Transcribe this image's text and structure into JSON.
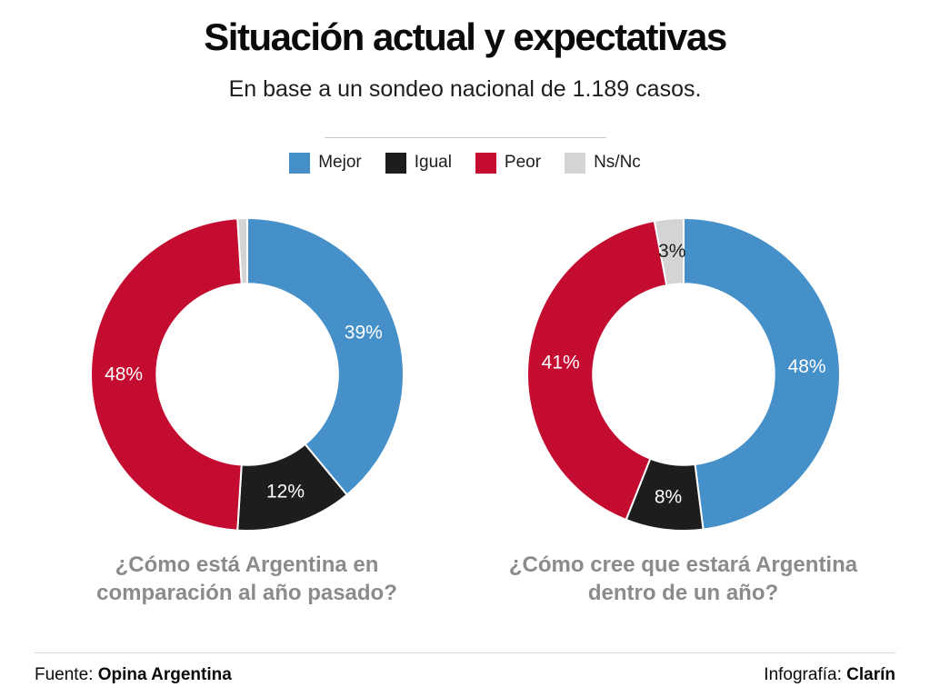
{
  "page": {
    "background": "#ffffff"
  },
  "header": {
    "title": "Situación actual y expectativas",
    "subtitle": "En base a un sondeo nacional de 1.189 casos."
  },
  "legend": {
    "items": [
      {
        "label": "Mejor",
        "color": "#4690c9"
      },
      {
        "label": "Igual",
        "color": "#1d1d1d"
      },
      {
        "label": "Peor",
        "color": "#c40b30"
      },
      {
        "label": "Ns/Nc",
        "color": "#d4d4d4"
      }
    ]
  },
  "chart_data": [
    {
      "type": "pie",
      "subtype": "donut",
      "question": "¿Cómo está Argentina en comparación al año pasado?",
      "categories": [
        "Mejor",
        "Igual",
        "Peor",
        "Ns/Nc"
      ],
      "values": [
        39,
        12,
        48,
        1
      ],
      "slice_labels": [
        "39%",
        "12%",
        "48%",
        ""
      ],
      "colors": [
        "#4690c9",
        "#1d1d1d",
        "#c40b30",
        "#d4d4d4"
      ],
      "label_colors": [
        "#ffffff",
        "#ffffff",
        "#ffffff",
        "#1d1d1d"
      ],
      "start_angle": "top",
      "direction": "clockwise",
      "inner_radius_ratio": 0.58
    },
    {
      "type": "pie",
      "subtype": "donut",
      "question": "¿Cómo cree que estará Argentina dentro de un año?",
      "categories": [
        "Mejor",
        "Igual",
        "Peor",
        "Ns/Nc"
      ],
      "values": [
        48,
        8,
        41,
        3
      ],
      "slice_labels": [
        "48%",
        "8%",
        "41%",
        "3%"
      ],
      "colors": [
        "#4690c9",
        "#1d1d1d",
        "#c40b30",
        "#d4d4d4"
      ],
      "label_colors": [
        "#ffffff",
        "#ffffff",
        "#ffffff",
        "#1d1d1d"
      ],
      "start_angle": "top",
      "direction": "clockwise",
      "inner_radius_ratio": 0.58
    }
  ],
  "footer": {
    "source_label": "Fuente:",
    "source_name": "Opina Argentina",
    "credit_label": "Infografía:",
    "credit_name": "Clarín"
  }
}
